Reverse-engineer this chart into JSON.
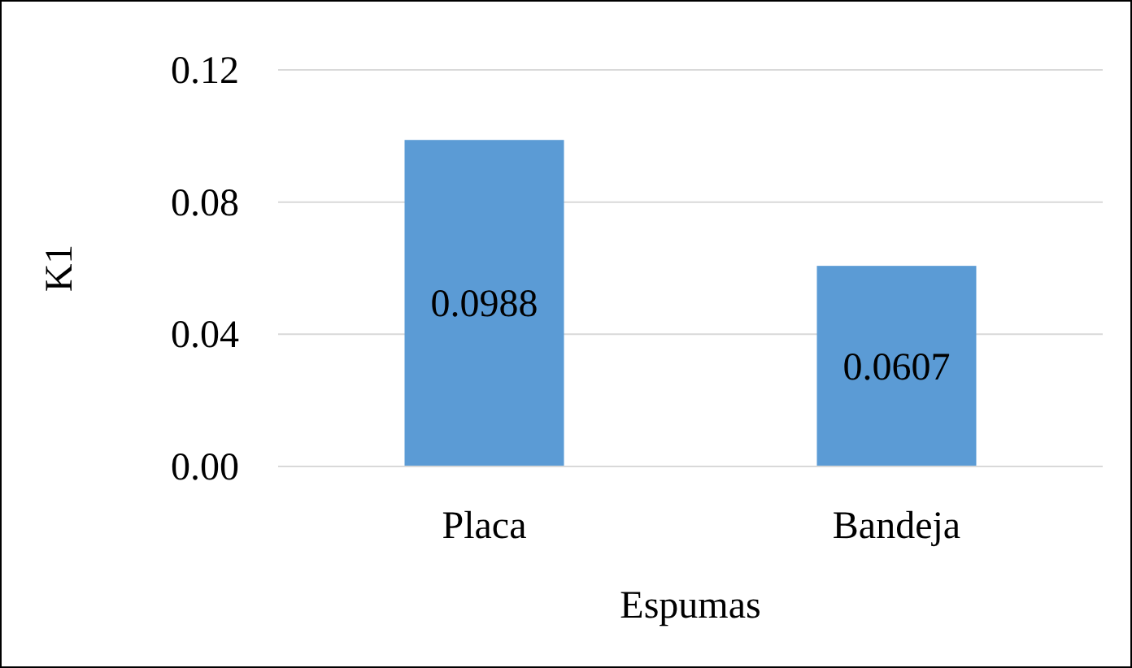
{
  "chart_data": {
    "type": "bar",
    "xlabel": "Espumas",
    "ylabel": "K1",
    "categories": [
      "Placa",
      "Bandeja"
    ],
    "values": [
      0.0988,
      0.0607
    ],
    "color": "#5b9bd5",
    "data_labels": true,
    "ylim": [
      0,
      0.12
    ],
    "yticks": [
      {
        "value": 0,
        "label": "0.00"
      },
      {
        "value": 0.04,
        "label": "0.04"
      },
      {
        "value": 0.08,
        "label": "0.08"
      },
      {
        "value": 0.12,
        "label": "0.12"
      }
    ],
    "grid": "y"
  }
}
